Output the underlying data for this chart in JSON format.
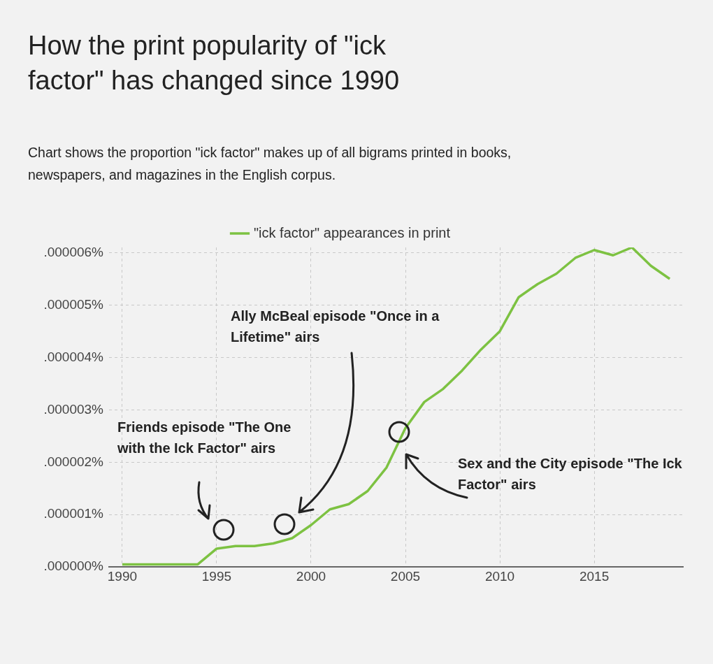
{
  "chart_data": {
    "type": "line",
    "title": "How the print popularity of \"ick factor\" has changed since 1990",
    "subtitle": "Chart shows the proportion \"ick factor\" makes up of all bigrams printed in books, newspapers, and magazines in the English corpus.",
    "x": [
      1990,
      1991,
      1992,
      1993,
      1994,
      1995,
      1996,
      1997,
      1998,
      1999,
      2000,
      2001,
      2002,
      2003,
      2004,
      2005,
      2006,
      2007,
      2008,
      2009,
      2010,
      2011,
      2012,
      2013,
      2014,
      2015,
      2016,
      2017,
      2018,
      2019
    ],
    "series": [
      {
        "name": "\"ick factor\" appearances in print",
        "color": "#7dc242",
        "values": [
          5e-08,
          5e-08,
          5e-08,
          5e-08,
          5e-08,
          3.5e-07,
          4e-07,
          4e-07,
          4.5e-07,
          5.5e-07,
          8e-07,
          1.1e-06,
          1.2e-06,
          1.45e-06,
          1.9e-06,
          2.65e-06,
          3.15e-06,
          3.4e-06,
          3.75e-06,
          4.15e-06,
          4.5e-06,
          5.15e-06,
          5.4e-06,
          5.6e-06,
          5.9e-06,
          6.05e-06,
          5.95e-06,
          6.1e-06,
          5.75e-06,
          5.5e-06
        ]
      }
    ],
    "xlim": [
      1989.3,
      2019.7
    ],
    "xticks": [
      1990,
      1995,
      2000,
      2005,
      2010,
      2015
    ],
    "ylim": [
      0,
      6.1e-06
    ],
    "yticks": [
      {
        "value": 0,
        "label": ".000000%"
      },
      {
        "value": 1e-06,
        "label": ".000001%"
      },
      {
        "value": 2e-06,
        "label": ".000002%"
      },
      {
        "value": 3e-06,
        "label": ".000003%"
      },
      {
        "value": 4e-06,
        "label": ".000004%"
      },
      {
        "value": 5e-06,
        "label": ".000005%"
      },
      {
        "value": 6e-06,
        "label": ".000006%"
      }
    ],
    "annotations": [
      "Friends episode \"The One with the Ick Factor\" airs",
      "Ally McBeal episode \"Once in a Lifetime\" airs",
      "Sex and the City episode \"The Ick Factor\" airs"
    ],
    "grid": true,
    "legend": "top",
    "marker": "none"
  }
}
